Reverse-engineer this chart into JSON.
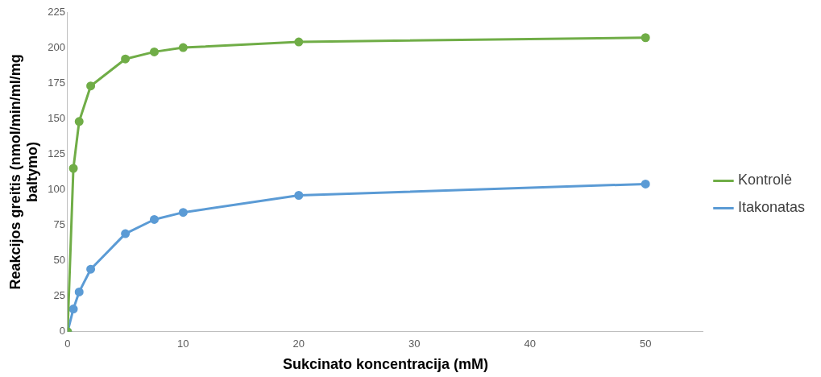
{
  "chart_data": {
    "type": "line",
    "xlabel": "Sukcinato koncentracija (mM)",
    "ylabel": "Reakcijos greitis (nmol/min/ml/mg baltymo)",
    "x": [
      0,
      0.5,
      1,
      2,
      5,
      7.5,
      10,
      20,
      50
    ],
    "series": [
      {
        "name": "Kontrolė",
        "color": "#70ad47",
        "values": [
          0,
          115,
          148,
          173,
          192,
          197,
          200,
          204,
          207
        ]
      },
      {
        "name": "Itakonatas",
        "color": "#5b9bd5",
        "values": [
          0,
          16,
          28,
          44,
          69,
          79,
          84,
          96,
          104
        ]
      }
    ],
    "xlim": [
      0,
      55
    ],
    "xticks": [
      0,
      10,
      20,
      30,
      40,
      50
    ],
    "ylim": [
      0,
      225
    ],
    "yticks": [
      0,
      25,
      50,
      75,
      100,
      125,
      150,
      175,
      200,
      225
    ],
    "grid": false,
    "legend": "right",
    "marker": "circle",
    "line_style": "solid"
  }
}
